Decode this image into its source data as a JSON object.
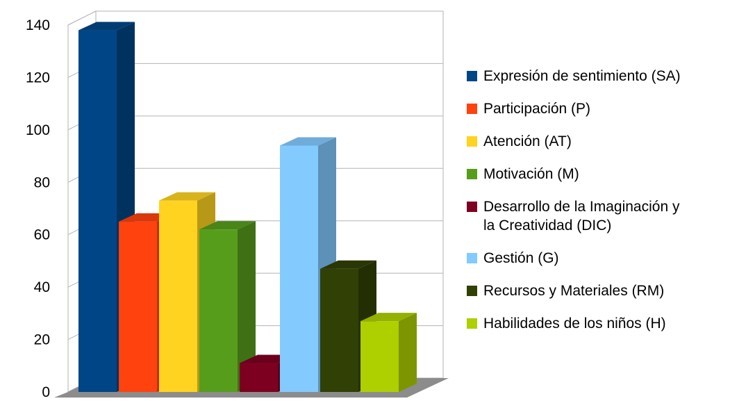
{
  "chart_data": {
    "type": "bar",
    "title": "",
    "xlabel": "",
    "ylabel": "",
    "ylim": [
      0,
      140
    ],
    "yticks": [
      0,
      20,
      40,
      60,
      80,
      100,
      120,
      140
    ],
    "grid": true,
    "legend_position": "right",
    "style": "3d",
    "series": [
      {
        "name": "Expresión de sentimiento (SA)",
        "value": 138,
        "color": "#004586"
      },
      {
        "name": "Participación (P)",
        "value": 65,
        "color": "#ff420e"
      },
      {
        "name": "Atención (AT)",
        "value": 73,
        "color": "#ffd320"
      },
      {
        "name": "Motivación (M)",
        "value": 62,
        "color": "#579d1c"
      },
      {
        "name": "Desarrollo de la Imaginación y la Creatividad (DIC)",
        "value": 11,
        "color": "#7e0021"
      },
      {
        "name": "Gestión (G)",
        "value": 94,
        "color": "#83caff"
      },
      {
        "name": "Recursos y Materiales (RM)",
        "value": 47,
        "color": "#314004"
      },
      {
        "name": "Habilidades de los niños (H)",
        "value": 27,
        "color": "#aecf00"
      }
    ]
  },
  "legend": {
    "items": [
      {
        "label": "Expresión de sentimiento (SA)",
        "color": "#004586"
      },
      {
        "label": "Participación (P)",
        "color": "#ff420e"
      },
      {
        "label": "Atención (AT)",
        "color": "#ffd320"
      },
      {
        "label": "Motivación (M)",
        "color": "#579d1c"
      },
      {
        "label": "Desarrollo de la Imaginación y\nla Creatividad (DIC)",
        "color": "#7e0021"
      },
      {
        "label": "Gestión (G)",
        "color": "#83caff"
      },
      {
        "label": "Recursos y Materiales (RM)",
        "color": "#314004"
      },
      {
        "label": "Habilidades de los niños (H)",
        "color": "#aecf00"
      }
    ]
  }
}
